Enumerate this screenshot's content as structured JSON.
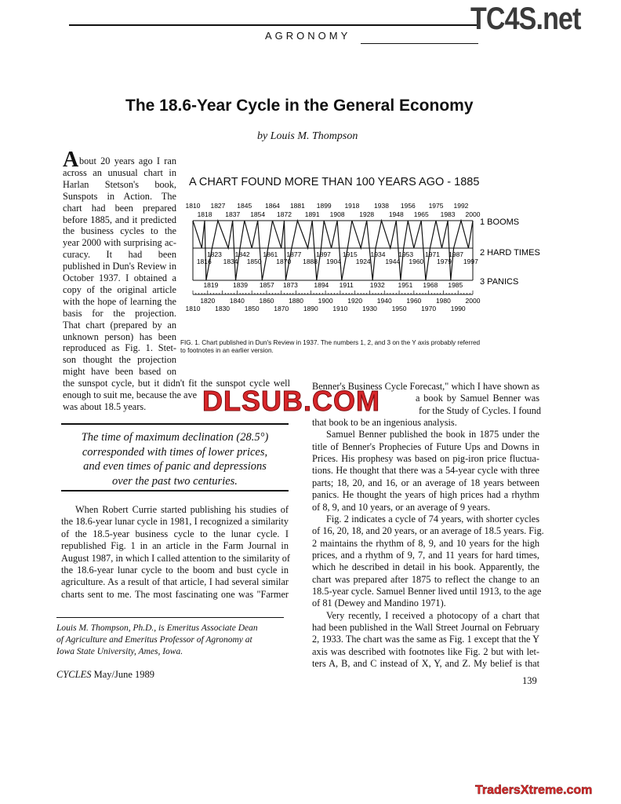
{
  "header": {
    "section": "AGRONOMY",
    "logo": "TC4S.net"
  },
  "article": {
    "title": "The 18.6-Year Cycle in the General Economy",
    "byline": "by Louis M. Thompson",
    "drop_cap": "A",
    "left_lines": [
      "bout 20 years ago I ran",
      "across an unusual chart in",
      "Harlan Stetson's book,",
      "Sunspots in Action. The",
      "chart had been prepared",
      "before 1885, and it predicted",
      "the business cycles to the",
      "year 2000 with surprising ac-",
      "curacy. It had been",
      "published in Dun's Review in",
      "October 1937. I obtained a",
      "copy of the original article",
      "with the hope of learning the",
      "basis for the projection.",
      "That chart (prepared by an",
      "unknown person) has been",
      "reproduced as Fig. 1. Stet-",
      "son thought the projection",
      "might have been based on",
      "the sunspot cycle, but it didn't fit the sunspot cycle well",
      "enough to suit me, because the ave",
      "was about 18.5 years."
    ],
    "pull_quote": [
      "The time of maximum declination (28.5°)",
      "corresponded with times of lower prices,",
      "and even times of panic and depressions",
      "over the past two centuries."
    ],
    "left_lines_2": [
      "When Robert Currie started publishing his studies of",
      "the 18.6-year lunar cycle in 1981, I recognized a similarity",
      "of the 18.5-year business cycle to the lunar cycle. I",
      "republished Fig. 1 in an article in the Farm Journal in",
      "August 1987, in which I called attention to the similarity of",
      "the 18.6-year lunar cycle to the boom and bust cycle in",
      "agriculture. As a result of that article, I had several similar",
      "charts sent to me. The most fascinating one was \"Farmer"
    ],
    "right_lines": [
      "Benner's Business Cycle Forecast,\" which I have shown as",
      "a book by Samuel Benner was",
      "for the Study of Cycles. I found",
      "that book to be an ingenious analysis.",
      "Samuel Benner published the book in 1875 under the",
      "title of Benner's Prophecies of Future Ups and Downs in",
      "Prices. His prophesy was based on pig-iron price fluctua-",
      "tions. He thought that there was a 54-year cycle with three",
      "parts; 18, 20, and 16, or an average of 18 years between",
      "panics. He thought the years of high prices had a rhythm",
      "of 8, 9, and 10 years, or an average of 9 years.",
      "Fig. 2 indicates a cycle of 74 years, with shorter cycles",
      "of 16, 20, 18, and 20 years, or an average of 18.5 years. Fig.",
      "2 maintains the rhythm of 8, 9, and 10 years for the high",
      "prices, and a rhythm of 9, 7, and 11 years for hard times,",
      "which he described in detail in his book. Apparently, the",
      "chart was prepared after 1875 to reflect the change to an",
      "18.5-year cycle. Samuel Benner lived until 1913, to the age",
      "of 81 (Dewey and Mandino 1971).",
      "Very recently, I received a photocopy of a chart that",
      "had been published in the Wall Street Journal on February",
      "2, 1933. The chart was the same as Fig. 1 except that the Y",
      "axis was described with footnotes like Fig. 2 but with let-",
      "ters A, B, and C instead of X, Y, and Z. My belief is that"
    ],
    "footnote": [
      "Louis M. Thompson, Ph.D., is Emeritus Associate Dean",
      "of Agriculture and Emeritus Professor of Agronomy at",
      "Iowa State University, Ames, Iowa."
    ]
  },
  "figure": {
    "caption_lines": [
      "FIG. 1. Chart published in Dun's Review in 1937. The numbers 1, 2, and 3 on the Y axis probably referred",
      "to footnotes in an earlier version."
    ]
  },
  "chart_data": {
    "type": "line",
    "title": "A CHART FOUND MORE THAN 100 YEARS AGO - 1885",
    "y_levels": [
      "1 BOOMS",
      "2 HARD TIMES",
      "3 PANICS"
    ],
    "xlim": [
      1810,
      2000
    ],
    "x_ticks_upper": [
      1820,
      1840,
      1860,
      1880,
      1900,
      1920,
      1940,
      1960,
      1980,
      2000
    ],
    "x_ticks_lower": [
      1810,
      1830,
      1850,
      1870,
      1890,
      1910,
      1930,
      1950,
      1970,
      1990
    ],
    "booms": [
      1810,
      1818,
      1827,
      1837,
      1845,
      1854,
      1864,
      1872,
      1881,
      1891,
      1899,
      1908,
      1918,
      1928,
      1938,
      1948,
      1956,
      1965,
      1975,
      1983,
      1992,
      2000
    ],
    "hard_times": [
      1816,
      1823,
      1834,
      1842,
      1850,
      1861,
      1870,
      1877,
      1888,
      1897,
      1904,
      1915,
      1924,
      1934,
      1944,
      1953,
      1960,
      1971,
      1979,
      1987,
      1997
    ],
    "panics": [
      1819,
      1839,
      1857,
      1873,
      1894,
      1911,
      1932,
      1951,
      1968,
      1985
    ]
  },
  "footer": {
    "journal": "CYCLES",
    "issue": "May/June 1989",
    "page": "139"
  },
  "watermarks": {
    "center": "DLSUB.COM",
    "bottom": "TradersXtreme.com"
  }
}
